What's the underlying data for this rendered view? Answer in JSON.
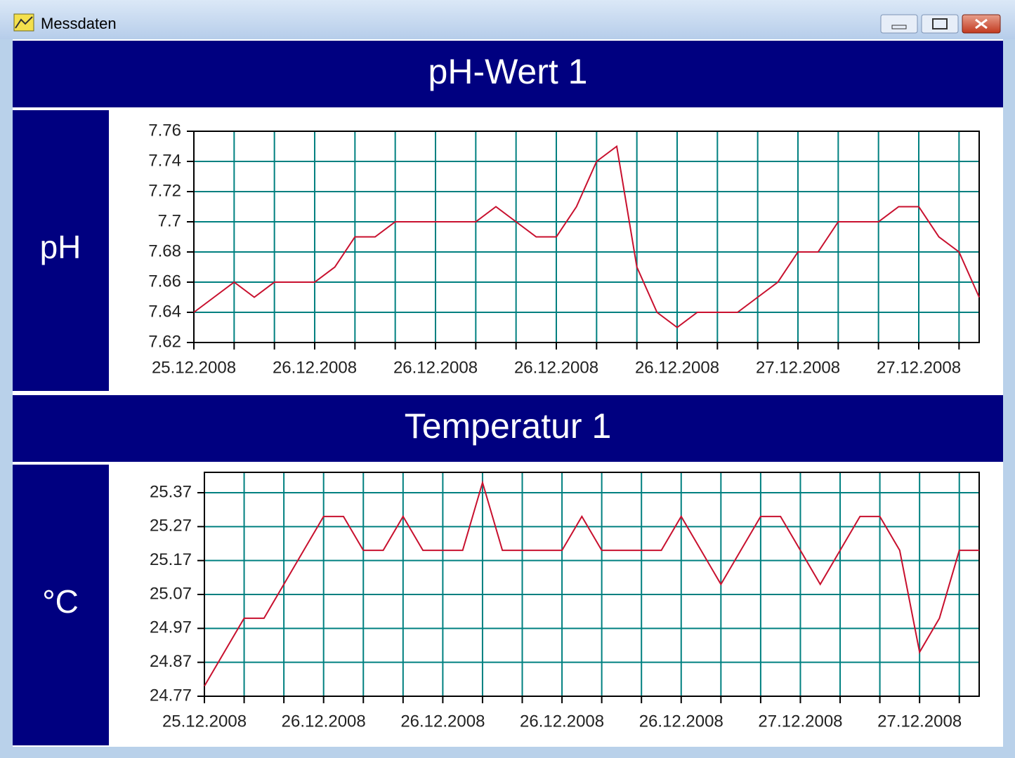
{
  "window": {
    "title": "Messdaten"
  },
  "chart_data": [
    {
      "type": "line",
      "title": "pH-Wert 1",
      "y_label": "pH",
      "categories": [
        "25.12.2008",
        null,
        null,
        null,
        null,
        null,
        "26.12.2008",
        null,
        null,
        null,
        null,
        null,
        "26.12.2008",
        null,
        null,
        null,
        null,
        null,
        "26.12.2008",
        null,
        null,
        null,
        null,
        null,
        "26.12.2008",
        null,
        null,
        null,
        null,
        null,
        "27.12.2008",
        null,
        null,
        null,
        null,
        null,
        "27.12.2008",
        null,
        null,
        null
      ],
      "series": [
        {
          "color": "#c8102e",
          "values": [
            7.64,
            7.65,
            7.66,
            7.65,
            7.66,
            7.66,
            7.66,
            7.67,
            7.69,
            7.69,
            7.7,
            7.7,
            7.7,
            7.7,
            7.7,
            7.71,
            7.7,
            7.69,
            7.69,
            7.71,
            7.74,
            7.75,
            7.67,
            7.64,
            7.63,
            7.64,
            7.64,
            7.64,
            7.65,
            7.66,
            7.68,
            7.68,
            7.7,
            7.7,
            7.7,
            7.71,
            7.71,
            7.69,
            7.68,
            7.65
          ]
        }
      ],
      "ylim": [
        7.62,
        7.76
      ],
      "yticks": [
        7.62,
        7.64,
        7.66,
        7.68,
        7.7,
        7.72,
        7.74,
        7.76
      ],
      "grid": true
    },
    {
      "type": "line",
      "title": "Temperatur 1",
      "y_label": "°C",
      "categories": [
        "25.12.2008",
        null,
        null,
        null,
        null,
        null,
        "26.12.2008",
        null,
        null,
        null,
        null,
        null,
        "26.12.2008",
        null,
        null,
        null,
        null,
        null,
        "26.12.2008",
        null,
        null,
        null,
        null,
        null,
        "26.12.2008",
        null,
        null,
        null,
        null,
        null,
        "27.12.2008",
        null,
        null,
        null,
        null,
        null,
        "27.12.2008",
        null,
        null,
        null
      ],
      "series": [
        {
          "color": "#c8102e",
          "values": [
            24.8,
            24.9,
            25.0,
            25.0,
            25.1,
            25.2,
            25.3,
            25.3,
            25.2,
            25.2,
            25.3,
            25.2,
            25.2,
            25.2,
            25.4,
            25.2,
            25.2,
            25.2,
            25.2,
            25.3,
            25.2,
            25.2,
            25.2,
            25.2,
            25.3,
            25.2,
            25.1,
            25.2,
            25.3,
            25.3,
            25.2,
            25.1,
            25.2,
            25.3,
            25.3,
            25.2,
            24.9,
            25.0,
            25.2,
            25.2
          ]
        }
      ],
      "ylim": [
        24.77,
        25.43
      ],
      "yticks": [
        24.77,
        24.87,
        24.97,
        25.07,
        25.17,
        25.27,
        25.37
      ],
      "grid": true
    }
  ]
}
